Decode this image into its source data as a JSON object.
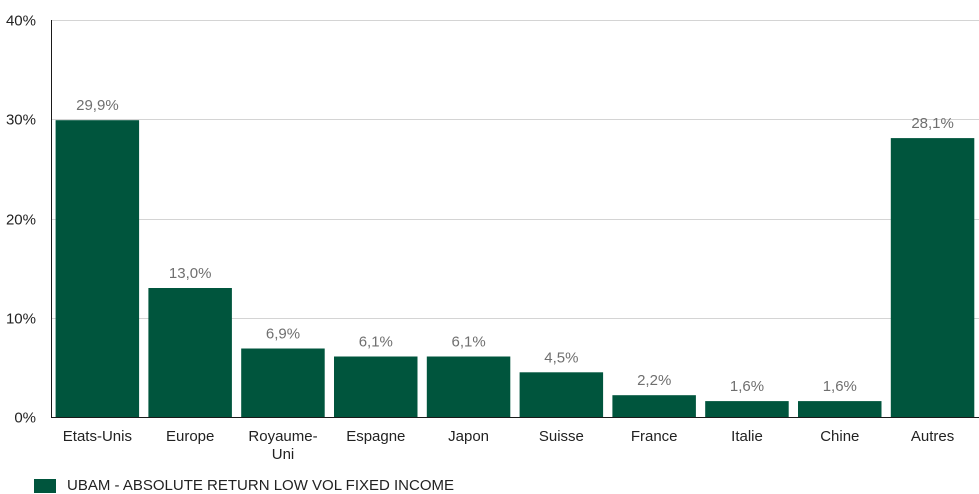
{
  "chart_data": {
    "type": "bar",
    "categories": [
      "Etats-Unis",
      "Europe",
      "Royaume-Uni",
      "Espagne",
      "Japon",
      "Suisse",
      "France",
      "Italie",
      "Chine",
      "Autres"
    ],
    "category_display": [
      [
        "Etats-Unis"
      ],
      [
        "Europe"
      ],
      [
        "Royaume-",
        "Uni"
      ],
      [
        "Espagne"
      ],
      [
        "Japon"
      ],
      [
        "Suisse"
      ],
      [
        "France"
      ],
      [
        "Italie"
      ],
      [
        "Chine"
      ],
      [
        "Autres"
      ]
    ],
    "series": [
      {
        "name": "UBAM - ABSOLUTE RETURN LOW VOL FIXED INCOME",
        "values": [
          29.9,
          13.0,
          6.9,
          6.1,
          6.1,
          4.5,
          2.2,
          1.6,
          1.6,
          28.1
        ],
        "labels": [
          "29,9%",
          "13,0%",
          "6,9%",
          "6,1%",
          "6,1%",
          "4,5%",
          "2,2%",
          "1,6%",
          "1,6%",
          "28,1%"
        ],
        "color": "#00553d"
      }
    ],
    "yticks": [
      0,
      10,
      20,
      30,
      40
    ],
    "ytick_labels": [
      "0%",
      "10%",
      "20%",
      "30%",
      "40%"
    ],
    "ylim": [
      0,
      40
    ],
    "grid": true,
    "legend_position": "bottom-left"
  }
}
